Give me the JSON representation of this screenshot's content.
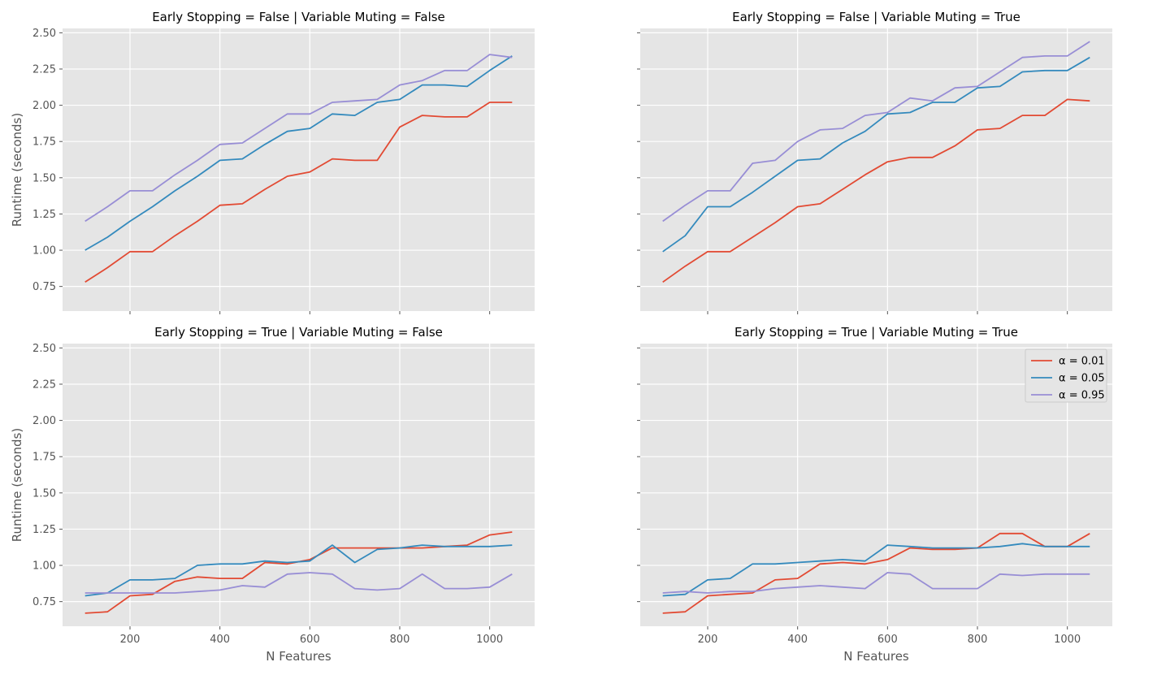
{
  "chart_data": {
    "type": "line",
    "style": "ggplot",
    "shared_xlabel": "N Features",
    "shared_ylabel": "Runtime (seconds)",
    "xlim": [
      50,
      1100
    ],
    "ylim": [
      0.58,
      2.53
    ],
    "xticks": [
      200,
      400,
      600,
      800,
      1000
    ],
    "yticks": [
      0.75,
      1.0,
      1.25,
      1.5,
      1.75,
      2.0,
      2.25,
      2.5
    ],
    "colors": {
      "alpha_0.01": "#E24A33",
      "alpha_0.05": "#348ABD",
      "alpha_0.95": "#988ED5"
    },
    "legend": {
      "location": "upper right",
      "panel": 3,
      "entries": [
        "α = 0.01",
        "α = 0.05",
        "α = 0.95"
      ]
    },
    "x": [
      100,
      150,
      200,
      250,
      300,
      350,
      400,
      450,
      500,
      550,
      600,
      650,
      700,
      750,
      800,
      850,
      900,
      950,
      1000,
      1050
    ],
    "panels": [
      {
        "title": "Early Stopping = False | Variable Muting = False",
        "series": [
          {
            "name": "α = 0.01",
            "values": [
              0.78,
              0.88,
              0.99,
              0.99,
              1.1,
              1.2,
              1.31,
              1.32,
              1.42,
              1.51,
              1.54,
              1.63,
              1.62,
              1.62,
              1.85,
              1.93,
              1.92,
              1.92,
              2.02,
              2.02
            ]
          },
          {
            "name": "α = 0.05",
            "values": [
              1.0,
              1.09,
              1.2,
              1.3,
              1.41,
              1.51,
              1.62,
              1.63,
              1.73,
              1.82,
              1.84,
              1.94,
              1.93,
              2.02,
              2.04,
              2.14,
              2.14,
              2.13,
              2.24,
              2.34
            ]
          },
          {
            "name": "α = 0.95",
            "values": [
              1.2,
              1.3,
              1.41,
              1.41,
              1.52,
              1.62,
              1.73,
              1.74,
              1.84,
              1.94,
              1.94,
              2.02,
              2.03,
              2.04,
              2.14,
              2.17,
              2.24,
              2.24,
              2.35,
              2.33
            ]
          }
        ]
      },
      {
        "title": "Early Stopping = False | Variable Muting = True",
        "series": [
          {
            "name": "α = 0.01",
            "values": [
              0.78,
              0.89,
              0.99,
              0.99,
              1.09,
              1.19,
              1.3,
              1.32,
              1.42,
              1.52,
              1.61,
              1.64,
              1.64,
              1.72,
              1.83,
              1.84,
              1.93,
              1.93,
              2.04,
              2.03
            ]
          },
          {
            "name": "α = 0.05",
            "values": [
              0.99,
              1.1,
              1.3,
              1.3,
              1.4,
              1.51,
              1.62,
              1.63,
              1.74,
              1.82,
              1.94,
              1.95,
              2.02,
              2.02,
              2.12,
              2.13,
              2.23,
              2.24,
              2.24,
              2.33
            ]
          },
          {
            "name": "α = 0.95",
            "values": [
              1.2,
              1.31,
              1.41,
              1.41,
              1.6,
              1.62,
              1.75,
              1.83,
              1.84,
              1.93,
              1.95,
              2.05,
              2.03,
              2.12,
              2.13,
              2.23,
              2.33,
              2.34,
              2.34,
              2.44
            ]
          }
        ]
      },
      {
        "title": "Early Stopping = True | Variable Muting = False",
        "series": [
          {
            "name": "α = 0.01",
            "values": [
              0.67,
              0.68,
              0.79,
              0.8,
              0.89,
              0.92,
              0.91,
              0.91,
              1.02,
              1.01,
              1.04,
              1.12,
              1.12,
              1.12,
              1.12,
              1.12,
              1.13,
              1.14,
              1.21,
              1.23
            ]
          },
          {
            "name": "α = 0.05",
            "values": [
              0.79,
              0.81,
              0.9,
              0.9,
              0.91,
              1.0,
              1.01,
              1.01,
              1.03,
              1.02,
              1.03,
              1.14,
              1.02,
              1.11,
              1.12,
              1.14,
              1.13,
              1.13,
              1.13,
              1.14
            ]
          },
          {
            "name": "α = 0.95",
            "values": [
              0.81,
              0.81,
              0.81,
              0.81,
              0.81,
              0.82,
              0.83,
              0.86,
              0.85,
              0.94,
              0.95,
              0.94,
              0.84,
              0.83,
              0.84,
              0.94,
              0.84,
              0.84,
              0.85,
              0.94
            ]
          }
        ]
      },
      {
        "title": "Early Stopping = True | Variable Muting = True",
        "series": [
          {
            "name": "α = 0.01",
            "values": [
              0.67,
              0.68,
              0.79,
              0.8,
              0.81,
              0.9,
              0.91,
              1.01,
              1.02,
              1.01,
              1.04,
              1.12,
              1.11,
              1.11,
              1.12,
              1.22,
              1.22,
              1.13,
              1.13,
              1.22
            ]
          },
          {
            "name": "α = 0.05",
            "values": [
              0.79,
              0.8,
              0.9,
              0.91,
              1.01,
              1.01,
              1.02,
              1.03,
              1.04,
              1.03,
              1.14,
              1.13,
              1.12,
              1.12,
              1.12,
              1.13,
              1.15,
              1.13,
              1.13,
              1.13
            ]
          },
          {
            "name": "α = 0.95",
            "values": [
              0.81,
              0.82,
              0.81,
              0.82,
              0.82,
              0.84,
              0.85,
              0.86,
              0.85,
              0.84,
              0.95,
              0.94,
              0.84,
              0.84,
              0.84,
              0.94,
              0.93,
              0.94,
              0.94,
              0.94
            ]
          }
        ]
      }
    ]
  }
}
